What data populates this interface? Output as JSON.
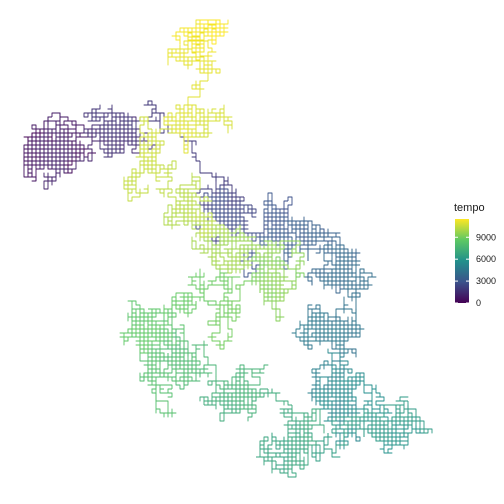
{
  "chart_data": {
    "type": "line",
    "title": "",
    "xlabel": "",
    "ylabel": "",
    "grid": false,
    "axes_visible": false,
    "legend": {
      "title": "tempo",
      "placement": "right",
      "ticks": [
        0,
        3000,
        6000,
        9000
      ],
      "tick_labels": [
        "0",
        "3000",
        "6000",
        "9000"
      ],
      "range": [
        0,
        11500
      ],
      "palette": [
        "#440154",
        "#3b528b",
        "#21908c",
        "#5dc863",
        "#fde725"
      ]
    },
    "series": [
      {
        "description_of_path_in_plot_coordinates": "lattice random walk colored by step index",
        "x": [
          0,
          2,
          2,
          4,
          4,
          6,
          6,
          8,
          8,
          10,
          10,
          12
        ],
        "y": [
          0,
          0,
          2,
          2,
          4,
          4,
          6,
          6,
          8,
          8,
          10,
          10
        ]
      }
    ]
  }
}
